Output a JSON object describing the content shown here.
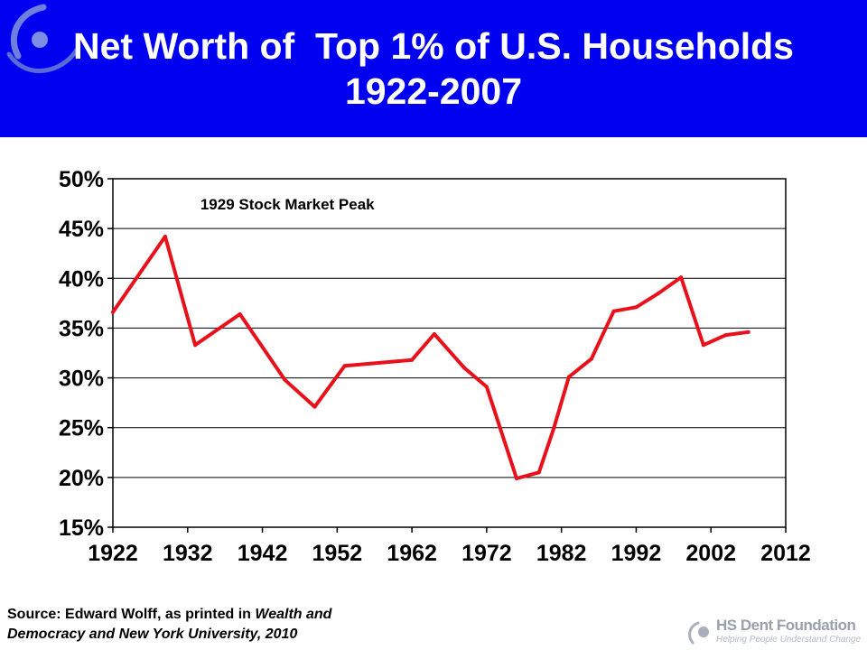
{
  "header": {
    "title_line1": "Net Worth of  Top 1% of U.S. Households",
    "title_line2": "1922-2007"
  },
  "colors": {
    "banner": "#0000f0",
    "line": "#e8101a",
    "footer_text": "#9aa0ad"
  },
  "chart_data": {
    "type": "line",
    "x": [
      1922,
      1929,
      1933,
      1939,
      1945,
      1949,
      1953,
      1962,
      1965,
      1969,
      1972,
      1976,
      1979,
      1981,
      1983,
      1986,
      1989,
      1992,
      1995,
      1998,
      2001,
      2004,
      2007
    ],
    "y": [
      36.6,
      44.2,
      33.3,
      36.4,
      29.8,
      27.1,
      31.2,
      31.8,
      34.4,
      31.0,
      29.1,
      19.9,
      20.5,
      25.0,
      30.1,
      31.9,
      36.7,
      37.1,
      38.5,
      40.1,
      33.3,
      34.3,
      34.6
    ],
    "xlim": [
      1922,
      2012
    ],
    "ylim": [
      15,
      50
    ],
    "x_ticks": [
      "1922",
      "1932",
      "1942",
      "1952",
      "1962",
      "1972",
      "1982",
      "1992",
      "2002",
      "2012"
    ],
    "y_ticks": [
      "15%",
      "20%",
      "25%",
      "30%",
      "35%",
      "40%",
      "45%",
      "50%"
    ],
    "grid": "horizontal",
    "annotation": "1929 Stock Market Peak",
    "title": "",
    "xlabel": "",
    "ylabel": ""
  },
  "source": {
    "prefix": "Source: Edward Wolff, as printed in ",
    "italic1": "Wealth and",
    "italic2": "Democracy and New York University, 2010"
  },
  "footer": {
    "name": "HS Dent Foundation",
    "tagline": "Helping People Understand Change"
  }
}
